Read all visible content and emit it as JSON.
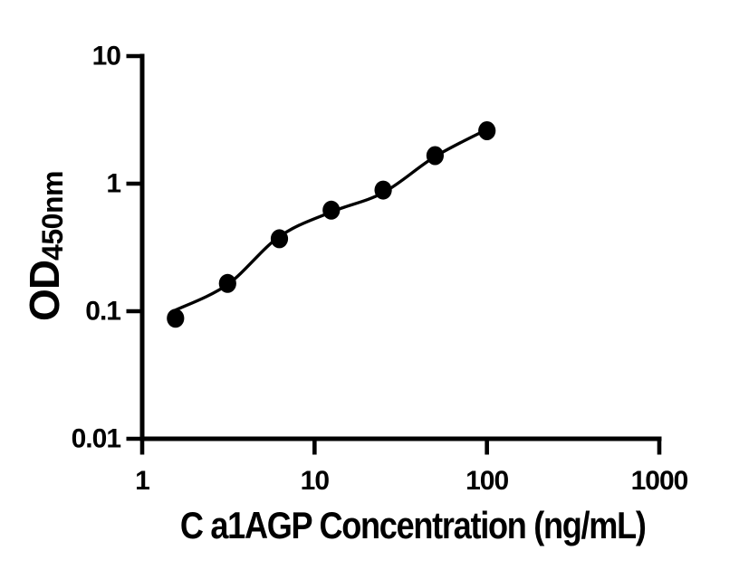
{
  "figure": {
    "background": "#ffffff",
    "ink_color": "#000000"
  },
  "chart_data": {
    "type": "scatter",
    "title": "",
    "xlabel": "C a1AGP Concentration (ng/mL)",
    "ylabel_main": "OD",
    "ylabel_sub": "450nm",
    "x_scale": "log",
    "y_scale": "log",
    "xlim": [
      1,
      1000
    ],
    "ylim": [
      0.01,
      10
    ],
    "x_ticks": [
      1,
      10,
      100,
      1000
    ],
    "x_tick_labels": [
      "1",
      "10",
      "100",
      "1000"
    ],
    "y_ticks": [
      10,
      1,
      0.1,
      0.01
    ],
    "y_tick_labels": [
      "10",
      "1",
      "0.1",
      "0.01"
    ],
    "grid": false,
    "legend": "none",
    "marker_color": "#000000",
    "line_color": "#000000",
    "series": [
      {
        "name": "standard-points",
        "type": "scatter",
        "points": [
          [
            1.56,
            0.088
          ],
          [
            3.13,
            0.165
          ],
          [
            6.25,
            0.37
          ],
          [
            12.5,
            0.62
          ],
          [
            25,
            0.89
          ],
          [
            50,
            1.66
          ],
          [
            100,
            2.6
          ]
        ]
      },
      {
        "name": "fit-line",
        "type": "line",
        "points": [
          [
            1.56,
            0.102
          ],
          [
            3.13,
            0.162
          ],
          [
            6.25,
            0.385
          ],
          [
            12.5,
            0.6
          ],
          [
            25,
            0.85
          ],
          [
            50,
            1.63
          ],
          [
            100,
            2.66
          ]
        ]
      }
    ]
  }
}
